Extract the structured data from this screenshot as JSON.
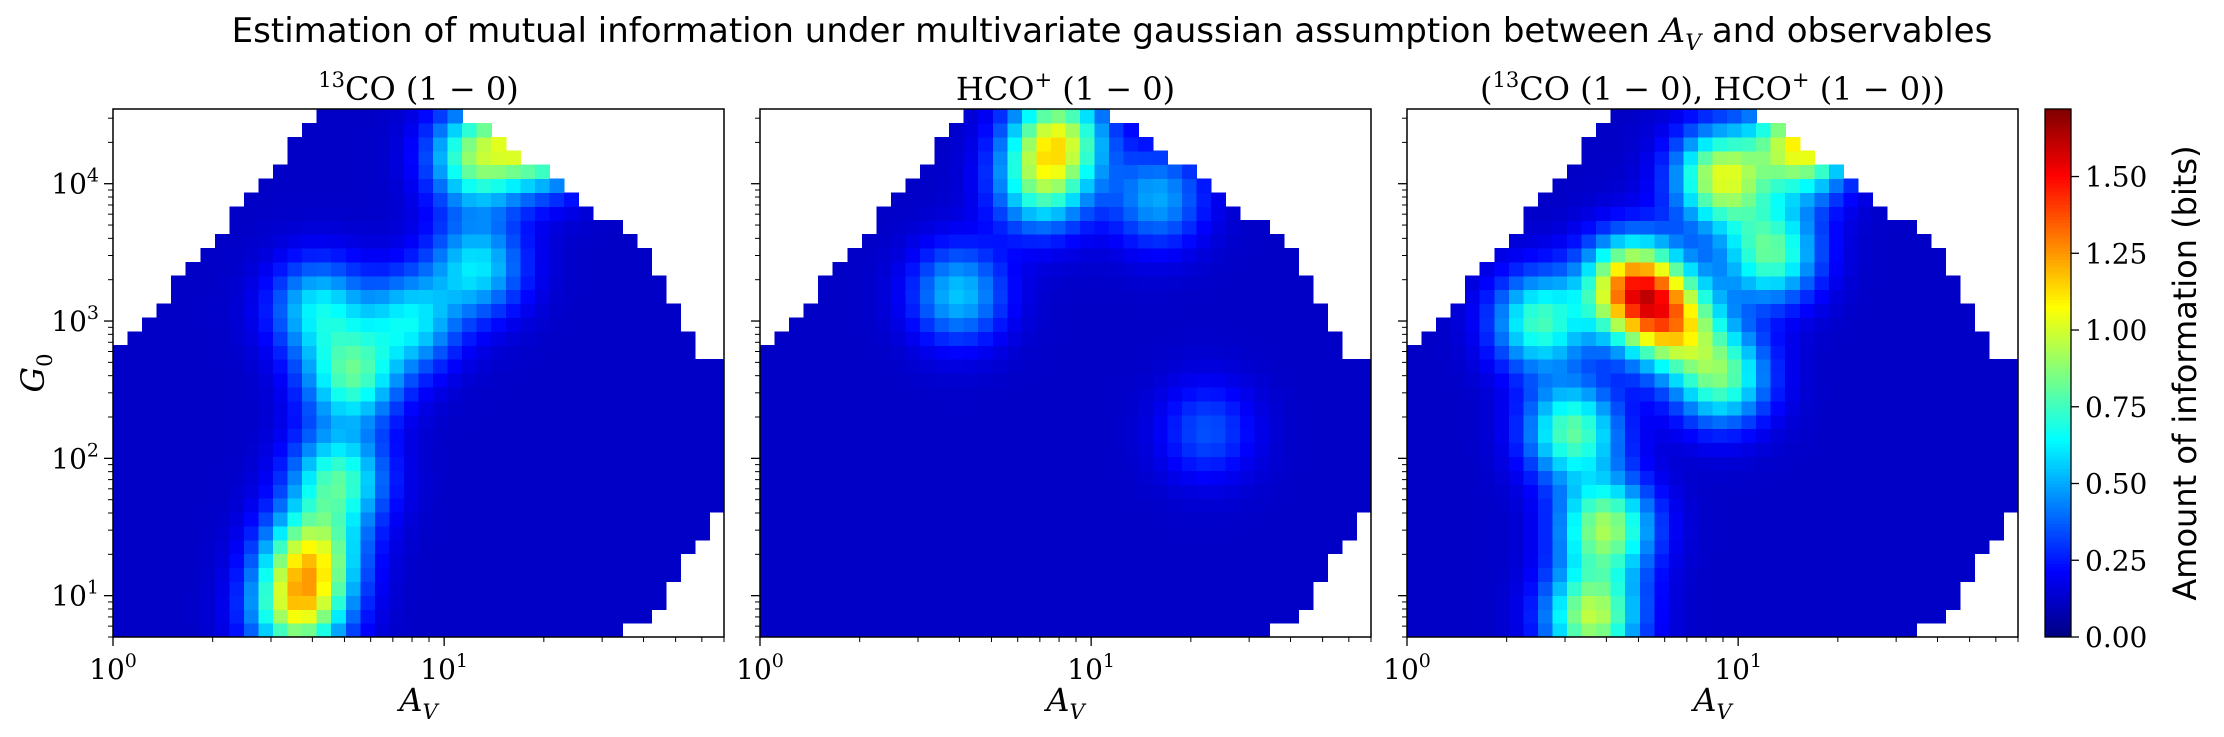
{
  "figure": {
    "title": "Estimation of mutual information under multivariate gaussian assumption between A_V and observables"
  },
  "chart_data": {
    "type": "heatmap",
    "panels": [
      {
        "id": "13co",
        "title": "13CO (1 − 0)",
        "xlabel": "A_V",
        "ylabel": "G_0",
        "x_scale": "log",
        "y_scale": "log",
        "xlim": [
          1,
          70
        ],
        "ylim": [
          5,
          35000
        ],
        "xticks": [
          1,
          10
        ],
        "yticks": [
          10,
          100,
          1000,
          10000
        ],
        "hotspots": [
          {
            "log_av": 0.56,
            "log_g0": 0.9,
            "value": 0.95
          },
          {
            "log_av": 0.6,
            "log_g0": 1.3,
            "value": 0.9
          },
          {
            "log_av": 0.68,
            "log_g0": 1.85,
            "value": 0.75
          },
          {
            "log_av": 0.72,
            "log_g0": 2.6,
            "value": 0.75
          },
          {
            "log_av": 0.62,
            "log_g0": 3.1,
            "value": 0.6
          },
          {
            "log_av": 1.3,
            "log_g0": 4.35,
            "value": 1.05
          },
          {
            "log_av": 1.1,
            "log_g0": 4.2,
            "value": 0.85
          },
          {
            "log_av": 1.1,
            "log_g0": 3.4,
            "value": 0.6
          },
          {
            "log_av": 0.9,
            "log_g0": 3.0,
            "value": 0.6
          }
        ]
      },
      {
        "id": "hco",
        "title": "HCO+ (1 − 0)",
        "xlabel": "A_V",
        "ylabel": "",
        "x_scale": "log",
        "y_scale": "log",
        "xlim": [
          1,
          70
        ],
        "ylim": [
          5,
          35000
        ],
        "xticks": [
          1,
          10
        ],
        "yticks": [
          10,
          100,
          1000,
          10000
        ],
        "hotspots": [
          {
            "log_av": 0.9,
            "log_g0": 4.35,
            "value": 0.9
          },
          {
            "log_av": 0.85,
            "log_g0": 4.0,
            "value": 0.7
          },
          {
            "log_av": 0.6,
            "log_g0": 3.2,
            "value": 0.55
          },
          {
            "log_av": 1.2,
            "log_g0": 3.9,
            "value": 0.5
          },
          {
            "log_av": 1.35,
            "log_g0": 2.2,
            "value": 0.35
          }
        ]
      },
      {
        "id": "joint",
        "title": "(13CO (1 − 0), HCO+ (1 − 0))",
        "xlabel": "A_V",
        "ylabel": "",
        "x_scale": "log",
        "y_scale": "log",
        "xlim": [
          1,
          70
        ],
        "ylim": [
          5,
          35000
        ],
        "xticks": [
          1,
          10
        ],
        "yticks": [
          10,
          100,
          1000,
          10000
        ],
        "hotspots": [
          {
            "log_av": 0.68,
            "log_g0": 3.25,
            "value": 1.25
          },
          {
            "log_av": 0.8,
            "log_g0": 3.0,
            "value": 1.0
          },
          {
            "log_av": 0.56,
            "log_g0": 0.85,
            "value": 0.95
          },
          {
            "log_av": 0.6,
            "log_g0": 1.5,
            "value": 0.9
          },
          {
            "log_av": 0.5,
            "log_g0": 2.2,
            "value": 0.8
          },
          {
            "log_av": 1.2,
            "log_g0": 4.3,
            "value": 1.1
          },
          {
            "log_av": 0.95,
            "log_g0": 4.05,
            "value": 1.0
          },
          {
            "log_av": 1.1,
            "log_g0": 3.5,
            "value": 0.8
          },
          {
            "log_av": 0.4,
            "log_g0": 3.0,
            "value": 0.75
          },
          {
            "log_av": 0.95,
            "log_g0": 2.6,
            "value": 0.8
          }
        ]
      }
    ],
    "colorbar": {
      "label": "Amount of information (bits)",
      "colormap": "jet",
      "range": [
        0,
        1.72
      ],
      "ticks": [
        "0.00",
        "0.25",
        "0.50",
        "0.75",
        "1.00",
        "1.25",
        "1.50"
      ],
      "tick_values": [
        0,
        0.25,
        0.5,
        0.75,
        1.0,
        1.25,
        1.5
      ]
    }
  }
}
